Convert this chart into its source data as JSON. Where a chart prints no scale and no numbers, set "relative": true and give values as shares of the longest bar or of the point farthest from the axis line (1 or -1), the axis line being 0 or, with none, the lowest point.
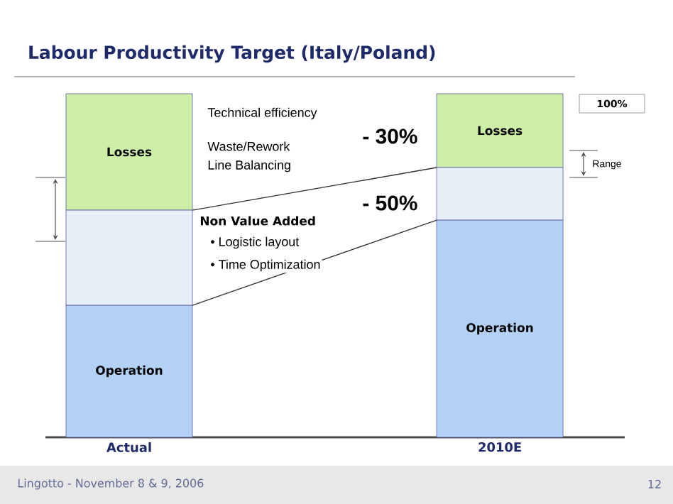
{
  "chart_data": {
    "type": "bar",
    "title": "Labour Productivity Target (Italy/Poland)",
    "categories": [
      "Actual",
      "2010E"
    ],
    "relative": true,
    "stacked": true,
    "series": [
      {
        "name": "Operation",
        "color": "#b3d1f5",
        "values": [
          0.384,
          0.632
        ]
      },
      {
        "name": "Non Value Added",
        "color": "#e8eff8",
        "values": [
          0.277,
          0.153
        ]
      },
      {
        "name": "Losses",
        "color": "#cdeea6",
        "values": [
          0.339,
          0.215
        ]
      }
    ],
    "annotations": [
      "Technical efficiency",
      "Waste/Rework",
      "Line Balancing",
      "- 30%",
      "- 50%",
      "• Logistic layout",
      "• Time Optimization",
      "100%",
      "Range",
      "Lingotto - November 8 & 9, 2006",
      "12"
    ]
  }
}
